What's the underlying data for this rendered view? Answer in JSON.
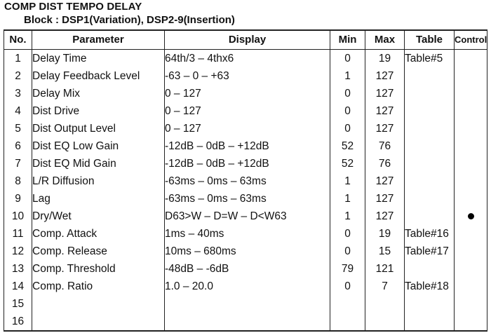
{
  "title": "COMP DIST TEMPO DELAY",
  "subtitle": "Block : DSP1(Variation), DSP2-9(Insertion)",
  "headers": {
    "no": "No.",
    "parameter": "Parameter",
    "display": "Display",
    "min": "Min",
    "max": "Max",
    "table": "Table",
    "control": "Control"
  },
  "rows": [
    {
      "no": "1",
      "parameter": "Delay Time",
      "display": "64th/3 – 4thx6",
      "min": "0",
      "max": "19",
      "table": "Table#5",
      "control": false
    },
    {
      "no": "2",
      "parameter": "Delay Feedback Level",
      "display": "-63 – 0 – +63",
      "min": "1",
      "max": "127",
      "table": "",
      "control": false
    },
    {
      "no": "3",
      "parameter": "Delay Mix",
      "display": "0 – 127",
      "min": "0",
      "max": "127",
      "table": "",
      "control": false
    },
    {
      "no": "4",
      "parameter": "Dist Drive",
      "display": "0 – 127",
      "min": "0",
      "max": "127",
      "table": "",
      "control": false
    },
    {
      "no": "5",
      "parameter": "Dist Output Level",
      "display": "0 – 127",
      "min": "0",
      "max": "127",
      "table": "",
      "control": false
    },
    {
      "no": "6",
      "parameter": "Dist EQ Low Gain",
      "display": "-12dB – 0dB – +12dB",
      "min": "52",
      "max": "76",
      "table": "",
      "control": false
    },
    {
      "no": "7",
      "parameter": "Dist EQ Mid Gain",
      "display": "-12dB – 0dB – +12dB",
      "min": "52",
      "max": "76",
      "table": "",
      "control": false
    },
    {
      "no": "8",
      "parameter": "L/R Diffusion",
      "display": "-63ms – 0ms – 63ms",
      "min": "1",
      "max": "127",
      "table": "",
      "control": false
    },
    {
      "no": "9",
      "parameter": "Lag",
      "display": "-63ms – 0ms – 63ms",
      "min": "1",
      "max": "127",
      "table": "",
      "control": false
    },
    {
      "no": "10",
      "parameter": "Dry/Wet",
      "display": "D63>W – D=W – D<W63",
      "min": "1",
      "max": "127",
      "table": "",
      "control": true
    },
    {
      "no": "11",
      "parameter": "Comp. Attack",
      "display": "1ms – 40ms",
      "min": "0",
      "max": "19",
      "table": "Table#16",
      "control": false
    },
    {
      "no": "12",
      "parameter": "Comp. Release",
      "display": "10ms – 680ms",
      "min": "0",
      "max": "15",
      "table": "Table#17",
      "control": false
    },
    {
      "no": "13",
      "parameter": "Comp. Threshold",
      "display": "-48dB – -6dB",
      "min": "79",
      "max": "121",
      "table": "",
      "control": false
    },
    {
      "no": "14",
      "parameter": "Comp. Ratio",
      "display": "1.0 – 20.0",
      "min": "0",
      "max": "7",
      "table": "Table#18",
      "control": false
    },
    {
      "no": "15",
      "parameter": "",
      "display": "",
      "min": "",
      "max": "",
      "table": "",
      "control": false
    },
    {
      "no": "16",
      "parameter": "",
      "display": "",
      "min": "",
      "max": "",
      "table": "",
      "control": false
    }
  ]
}
